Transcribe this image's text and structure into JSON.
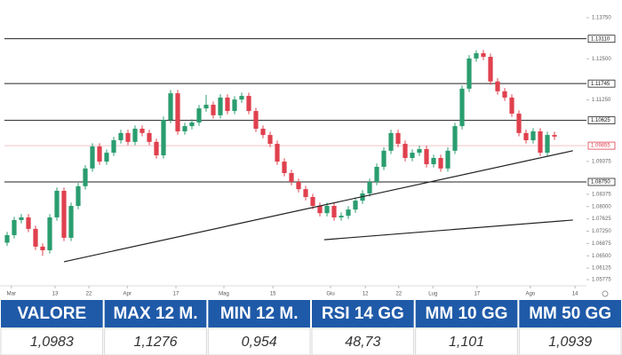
{
  "chart_data": {
    "type": "candlestick",
    "open": [
      1.069,
      1.0713,
      1.0759,
      1.0767,
      1.0732,
      1.0678,
      1.0667,
      1.0767,
      1.0848,
      1.0705,
      1.0802,
      1.0862,
      1.0916,
      1.0983,
      1.0937,
      1.0964,
      1.1002,
      1.1024,
      1.0997,
      1.1037,
      1.1024,
      1.0997,
      1.0956,
      1.1064,
      1.1145,
      1.1029,
      1.1045,
      1.1056,
      1.1099,
      1.111,
      1.1078,
      1.1132,
      1.1091,
      1.1126,
      1.1137,
      1.1091,
      1.1037,
      1.1018,
      1.0991,
      1.0937,
      1.0902,
      1.0875,
      1.0853,
      1.0829,
      1.0802,
      1.078,
      1.0802,
      1.0767,
      1.0772,
      1.0791,
      1.0818,
      1.084,
      1.0875,
      1.0921,
      1.097,
      1.1024,
      1.0991,
      1.0948,
      1.0964,
      1.0975,
      1.0929,
      1.0948,
      1.0916,
      1.097,
      1.1045,
      1.1159,
      1.1251,
      1.1267,
      1.1256,
      1.1181,
      1.1151,
      1.1132,
      1.1083,
      1.1024,
      1.1002,
      1.1029,
      1.0964,
      1.1018
    ],
    "high": [
      1.0723,
      1.0769,
      1.0777,
      1.0777,
      1.0742,
      1.0688,
      1.0777,
      1.0858,
      1.0858,
      1.0812,
      1.0872,
      1.0926,
      1.0993,
      1.0993,
      1.0974,
      1.1012,
      1.1034,
      1.1034,
      1.1047,
      1.1047,
      1.1034,
      1.1007,
      1.1074,
      1.1155,
      1.1155,
      1.1055,
      1.1066,
      1.1109,
      1.114,
      1.112,
      1.1142,
      1.1142,
      1.1136,
      1.1147,
      1.1147,
      1.1101,
      1.1047,
      1.1028,
      1.1001,
      1.0947,
      1.0912,
      1.0885,
      1.0863,
      1.0839,
      1.0812,
      1.0812,
      1.0812,
      1.0782,
      1.0801,
      1.0828,
      1.085,
      1.0885,
      1.0931,
      1.098,
      1.1034,
      1.1034,
      1.1001,
      1.0974,
      1.0985,
      1.0985,
      1.0958,
      1.0958,
      1.098,
      1.1055,
      1.1169,
      1.1261,
      1.1276,
      1.1277,
      1.1266,
      1.1191,
      1.1161,
      1.1142,
      1.1093,
      1.1034,
      1.1039,
      1.1039,
      1.1028,
      1.1028
    ],
    "low": [
      1.068,
      1.0703,
      1.0749,
      1.0722,
      1.0668,
      1.065,
      1.0657,
      1.0757,
      1.0695,
      1.0695,
      1.0792,
      1.0852,
      1.0906,
      1.0927,
      1.0927,
      1.0954,
      1.0992,
      1.0987,
      1.0987,
      1.1014,
      1.0987,
      1.0946,
      1.0946,
      1.1054,
      1.1019,
      1.1019,
      1.1035,
      1.1046,
      1.1089,
      1.1068,
      1.1068,
      1.1081,
      1.1081,
      1.1116,
      1.1081,
      1.1027,
      1.1008,
      1.0981,
      1.0927,
      1.0892,
      1.0865,
      1.0843,
      1.0819,
      1.0792,
      1.077,
      1.077,
      1.0757,
      1.0757,
      1.0762,
      1.0781,
      1.0808,
      1.083,
      1.0865,
      1.0911,
      1.096,
      1.0981,
      1.0938,
      1.0938,
      1.0954,
      1.0919,
      1.0919,
      1.0906,
      1.0906,
      1.096,
      1.1035,
      1.1149,
      1.1241,
      1.1246,
      1.1171,
      1.1141,
      1.1122,
      1.1073,
      1.1014,
      1.0992,
      1.0992,
      1.0954,
      1.0954,
      1.1003
    ],
    "close": [
      1.0713,
      1.0759,
      1.0767,
      1.0732,
      1.0678,
      1.0667,
      1.0767,
      1.0848,
      1.0705,
      1.0802,
      1.0862,
      1.0916,
      1.0983,
      1.0937,
      1.0964,
      1.1002,
      1.1024,
      1.0997,
      1.1037,
      1.1024,
      1.0997,
      1.0956,
      1.1064,
      1.1145,
      1.1029,
      1.1045,
      1.1056,
      1.1099,
      1.111,
      1.1078,
      1.1132,
      1.1091,
      1.1126,
      1.1137,
      1.1091,
      1.1037,
      1.1018,
      1.0991,
      1.0937,
      1.0902,
      1.0875,
      1.0853,
      1.0829,
      1.0802,
      1.078,
      1.0802,
      1.0767,
      1.0772,
      1.0791,
      1.0818,
      1.084,
      1.0875,
      1.0921,
      1.097,
      1.1024,
      1.0991,
      1.0948,
      1.0964,
      1.0975,
      1.0929,
      1.0948,
      1.0916,
      1.097,
      1.1045,
      1.1159,
      1.1251,
      1.1267,
      1.1256,
      1.1181,
      1.1151,
      1.1132,
      1.1083,
      1.1024,
      1.1002,
      1.1029,
      1.0964,
      1.1018,
      1.1013
    ],
    "up_color": "#2a9d6f",
    "down_color": "#e0404e",
    "xlim": [
      -1,
      81.5
    ],
    "xticks": [
      {
        "value": 0.6,
        "label": "Mar"
      },
      {
        "value": 6.75,
        "label": "13"
      },
      {
        "value": 11.5,
        "label": "22"
      },
      {
        "value": 16.9,
        "label": "Apr"
      },
      {
        "value": 23.75,
        "label": "17"
      },
      {
        "value": 30.5,
        "label": "Mag"
      },
      {
        "value": 37.4,
        "label": "15"
      },
      {
        "value": 45.5,
        "label": "Giu"
      },
      {
        "value": 50.4,
        "label": "12"
      },
      {
        "value": 55.1,
        "label": "22"
      },
      {
        "value": 59.9,
        "label": "Lug"
      },
      {
        "value": 66.1,
        "label": "17"
      },
      {
        "value": 73.6,
        "label": "Ago"
      },
      {
        "value": 79.9,
        "label": "14"
      }
    ],
    "ylim": [
      1.0575,
      1.1375
    ],
    "yticks": [
      {
        "value": 1.1375,
        "label": "1.13750"
      },
      {
        "value": 1.125,
        "label": "1.12500"
      },
      {
        "value": 1.1125,
        "label": "1.11250"
      },
      {
        "value": 1.09375,
        "label": "1.09375"
      },
      {
        "value": 1.08375,
        "label": "1.08375"
      },
      {
        "value": 1.08,
        "label": "1.08000"
      },
      {
        "value": 1.07625,
        "label": "1.07625"
      },
      {
        "value": 1.0725,
        "label": "1.07250"
      },
      {
        "value": 1.06875,
        "label": "1.06875"
      },
      {
        "value": 1.065,
        "label": "1.06500"
      },
      {
        "value": 1.06125,
        "label": "1.06125"
      },
      {
        "value": 1.05775,
        "label": "1.05775"
      }
    ],
    "levels": [
      {
        "value": 1.1311,
        "label": "1.13110"
      },
      {
        "value": 1.11745,
        "label": "1.11745"
      },
      {
        "value": 1.10625,
        "label": "1.10625"
      },
      {
        "value": 1.0875,
        "label": "1.08750"
      }
    ],
    "last_price": {
      "value": 1.09855,
      "label": "1.09855"
    },
    "trendlines": [
      {
        "x": [
          8,
          79.6
        ],
        "y": [
          1.0632,
          1.097
        ]
      },
      {
        "x": [
          44.6,
          79.6
        ],
        "y": [
          1.0699,
          1.0759
        ]
      }
    ]
  },
  "table": {
    "headers": [
      "VALORE",
      "MAX 12 M.",
      "MIN 12 M.",
      "RSI 14 GG",
      "MM 10 GG",
      "MM 50 GG"
    ],
    "values": [
      "1,0983",
      "1,1276",
      "0,954",
      "48,73",
      "1,101",
      "1,0939"
    ]
  }
}
